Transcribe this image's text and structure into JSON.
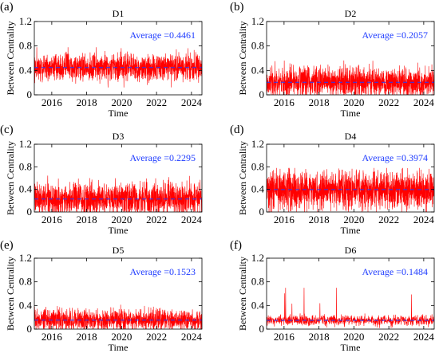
{
  "chart_data": [
    {
      "type": "line",
      "panel_label": "(a)",
      "title": "D1",
      "xlabel": "Time",
      "ylabel": "Between Centrality",
      "xlim": [
        2015.0,
        2024.6
      ],
      "ylim": [
        0,
        1.2
      ],
      "xticks": [
        "2016",
        "2018",
        "2020",
        "2022",
        "2024"
      ],
      "yticks": [
        "0",
        "0.4",
        "0.8",
        "1.2"
      ],
      "average_label": "Average =0.4461",
      "average": 0.4461,
      "series_color": "#ff0000",
      "average_line_color": "#1f3cff",
      "series_profile": {
        "min": 0.12,
        "max": 0.78,
        "mean": 0.4461
      }
    },
    {
      "type": "line",
      "panel_label": "(b)",
      "title": "D2",
      "xlabel": "Time",
      "ylabel": "Between Centrality",
      "xlim": [
        2015.0,
        2024.6
      ],
      "ylim": [
        0,
        1.2
      ],
      "xticks": [
        "2016",
        "2018",
        "2020",
        "2022",
        "2024"
      ],
      "yticks": [
        "0",
        "0.4",
        "0.8",
        "1.2"
      ],
      "average_label": "Average =0.2057",
      "average": 0.2057,
      "series_color": "#ff0000",
      "average_line_color": "#1f3cff",
      "series_profile": {
        "min": 0.0,
        "max": 0.66,
        "mean": 0.2057
      }
    },
    {
      "type": "line",
      "panel_label": "(c)",
      "title": "D3",
      "xlabel": "Time",
      "ylabel": "Between Centrality",
      "xlim": [
        2015.0,
        2024.6
      ],
      "ylim": [
        0,
        1.2
      ],
      "xticks": [
        "2016",
        "2018",
        "2020",
        "2022",
        "2024"
      ],
      "yticks": [
        "0",
        "0.4",
        "0.8",
        "1.2"
      ],
      "average_label": "Average =0.2295",
      "average": 0.2295,
      "series_color": "#ff0000",
      "average_line_color": "#1f3cff",
      "series_profile": {
        "min": 0.0,
        "max": 0.76,
        "mean": 0.2295
      }
    },
    {
      "type": "line",
      "panel_label": "(d)",
      "title": "D4",
      "xlabel": "Time",
      "ylabel": "Between Centrality",
      "xlim": [
        2015.0,
        2024.6
      ],
      "ylim": [
        0,
        1.2
      ],
      "xticks": [
        "2016",
        "2018",
        "2020",
        "2022",
        "2024"
      ],
      "yticks": [
        "0",
        "0.4",
        "0.8",
        "1.2"
      ],
      "average_label": "Average =0.3974",
      "average": 0.3974,
      "series_color": "#ff0000",
      "average_line_color": "#1f3cff",
      "series_profile": {
        "min": 0.0,
        "max": 0.78,
        "mean": 0.3974
      }
    },
    {
      "type": "line",
      "panel_label": "(e)",
      "title": "D5",
      "xlabel": "Time",
      "ylabel": "Between Centrality",
      "xlim": [
        2015.0,
        2024.6
      ],
      "ylim": [
        0,
        1.2
      ],
      "xticks": [
        "2016",
        "2018",
        "2020",
        "2022",
        "2024"
      ],
      "yticks": [
        "0",
        "0.4",
        "0.8",
        "1.2"
      ],
      "average_label": "Average =0.1523",
      "average": 0.1523,
      "series_color": "#ff0000",
      "average_line_color": "#1f3cff",
      "series_profile": {
        "min": 0.0,
        "max": 0.48,
        "mean": 0.1523
      }
    },
    {
      "type": "line",
      "panel_label": "(f)",
      "title": "D6",
      "xlabel": "Time",
      "ylabel": "Between Centrality",
      "xlim": [
        2015.0,
        2024.6
      ],
      "ylim": [
        0,
        1.2
      ],
      "xticks": [
        "2016",
        "2018",
        "2020",
        "2022",
        "2024"
      ],
      "yticks": [
        "0",
        "0.4",
        "0.8",
        "1.2"
      ],
      "average_label": "Average =0.1484",
      "average": 0.1484,
      "series_color": "#ff0000",
      "average_line_color": "#1f3cff",
      "series_profile": {
        "min": 0.0,
        "max": 0.7,
        "mean": 0.1484
      }
    }
  ]
}
